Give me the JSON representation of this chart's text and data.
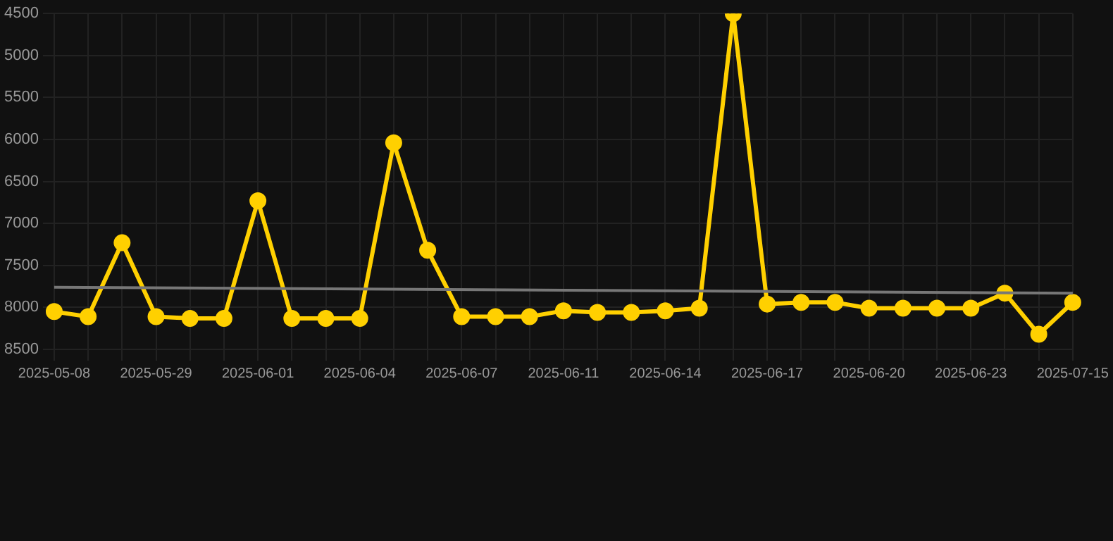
{
  "chart_data": {
    "type": "line",
    "categories": [
      "2025-05-08",
      null,
      null,
      "2025-05-29",
      null,
      null,
      "2025-06-01",
      null,
      null,
      "2025-06-04",
      null,
      null,
      "2025-06-07",
      null,
      null,
      "2025-06-11",
      null,
      null,
      "2025-06-14",
      null,
      null,
      "2025-06-17",
      null,
      null,
      "2025-06-20",
      null,
      null,
      "2025-06-23",
      null,
      null,
      "2025-07-15"
    ],
    "series": [
      {
        "color": "#ffd000",
        "values": [
          8050,
          8110,
          7230,
          8110,
          8130,
          8130,
          6730,
          8130,
          8130,
          8130,
          6040,
          7320,
          8110,
          8110,
          8110,
          8040,
          8060,
          8060,
          8040,
          8010,
          4500,
          7960,
          7940,
          7940,
          8010,
          8010,
          8010,
          8010,
          7830,
          8320,
          7940
        ],
        "marker": "circle"
      },
      {
        "type": "line",
        "color": "#777777",
        "values": [
          7760,
          null,
          null,
          null,
          null,
          null,
          null,
          null,
          null,
          null,
          null,
          null,
          null,
          null,
          null,
          null,
          null,
          null,
          null,
          null,
          null,
          null,
          null,
          null,
          null,
          null,
          null,
          null,
          null,
          null,
          7830
        ],
        "marker": "none"
      }
    ],
    "ylim": [
      8500,
      4500
    ],
    "yticks": [
      4500,
      5000,
      5500,
      6000,
      6500,
      7000,
      7500,
      8000,
      8500
    ],
    "grid": true,
    "legend": false
  }
}
